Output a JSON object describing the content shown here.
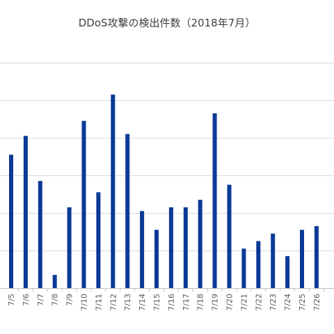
{
  "chart_data": {
    "type": "bar",
    "title": "DDoS攻撃の検出件数（2018年7月）",
    "categories": [
      "7/5",
      "7/6",
      "7/7",
      "7/8",
      "7/9",
      "7/10",
      "7/11",
      "7/12",
      "7/13",
      "7/14",
      "7/15",
      "7/16",
      "7/17",
      "7/18",
      "7/19",
      "7/20",
      "7/21",
      "7/22",
      "7/23",
      "7/24",
      "7/25",
      "7/26"
    ],
    "values": [
      7.1,
      8.1,
      5.7,
      0.7,
      4.3,
      8.9,
      5.1,
      10.3,
      8.2,
      4.1,
      3.1,
      4.3,
      4.3,
      4.7,
      9.3,
      5.5,
      2.1,
      2.5,
      2.9,
      1.7,
      3.1,
      3.3
    ],
    "ylim": [
      0,
      12
    ],
    "y_gridlines": [
      2,
      4,
      6,
      8,
      10,
      12
    ],
    "xlabel": "",
    "ylabel": "",
    "grid": true,
    "legend": "none",
    "bar_color": "#0b3a96",
    "grid_color": "#d9d9d9"
  }
}
